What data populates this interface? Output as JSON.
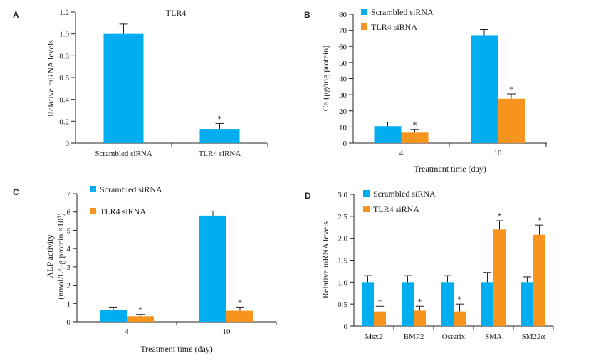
{
  "chart_data": [
    {
      "panel": "A",
      "type": "bar",
      "title": "TLR4",
      "xlabel": "",
      "ylabel": "Relative mRNA levels",
      "ylim": [
        0,
        1.2
      ],
      "yticks": [
        "0",
        "0.2",
        "0.4",
        "0.6",
        "0.8",
        "1.0",
        "1.2"
      ],
      "categories": [
        "Scrambled siRNA",
        "TLR4 siRNA"
      ],
      "series": [
        {
          "values": [
            1.0,
            0.13
          ],
          "errors": [
            0.09,
            0.05
          ],
          "color": "#00aeef",
          "significance": [
            "",
            "*"
          ]
        }
      ],
      "grid": false,
      "legend": "none"
    },
    {
      "panel": "B",
      "type": "bar",
      "title": "",
      "xlabel": "Treatment time (day)",
      "ylabel": "Ca (μg/mg protein)",
      "ylim": [
        0,
        80
      ],
      "yticks": [
        "0",
        "10",
        "20",
        "30",
        "40",
        "50",
        "60",
        "70",
        "80"
      ],
      "categories": [
        "4",
        "10"
      ],
      "series": [
        {
          "name": "Scrambled siRNA",
          "values": [
            10.5,
            67
          ],
          "errors": [
            2.5,
            3.5
          ],
          "color": "#00aeef",
          "significance": [
            "",
            ""
          ]
        },
        {
          "name": "TLR4 siRNA",
          "values": [
            6.5,
            27.5
          ],
          "errors": [
            2,
            3
          ],
          "color": "#f7941d",
          "significance": [
            "*",
            "*"
          ]
        }
      ],
      "grid": false,
      "legend": "top-left"
    },
    {
      "panel": "C",
      "type": "bar",
      "title": "",
      "xlabel": "Treatment time (day)",
      "ylabel": [
        "ALP activity",
        "(nmol/L/μg protein ×10³)"
      ],
      "ylim": [
        0,
        7
      ],
      "yticks": [
        "0",
        "1",
        "2",
        "3",
        "4",
        "5",
        "6",
        "7"
      ],
      "categories": [
        "4",
        "10"
      ],
      "series": [
        {
          "name": "Scrambled siRNA",
          "values": [
            0.65,
            5.8
          ],
          "errors": [
            0.15,
            0.25
          ],
          "color": "#00aeef",
          "significance": [
            "",
            ""
          ]
        },
        {
          "name": "TLR4 siRNA",
          "values": [
            0.3,
            0.6
          ],
          "errors": [
            0.1,
            0.2
          ],
          "color": "#f7941d",
          "significance": [
            "*",
            "*"
          ]
        }
      ],
      "grid": false,
      "legend": "top-left"
    },
    {
      "panel": "D",
      "type": "bar",
      "title": "",
      "xlabel": "",
      "ylabel": "Relative mRNA levels",
      "ylim": [
        0,
        3.0
      ],
      "yticks": [
        "0",
        "0.5",
        "1.0",
        "1.5",
        "2.0",
        "2.5",
        "3.0"
      ],
      "categories": [
        "Msx2",
        "BMP2",
        "Osterix",
        "SMA",
        "SM22α"
      ],
      "series": [
        {
          "name": "Scrambled siRNA",
          "values": [
            1.0,
            1.0,
            1.0,
            1.0,
            1.0
          ],
          "errors": [
            0.15,
            0.15,
            0.15,
            0.22,
            0.12
          ],
          "color": "#00aeef",
          "significance": [
            "",
            "",
            "",
            "",
            ""
          ]
        },
        {
          "name": "TLR4 siRNA",
          "values": [
            0.33,
            0.35,
            0.33,
            2.2,
            2.08
          ],
          "errors": [
            0.12,
            0.1,
            0.17,
            0.2,
            0.22
          ],
          "color": "#f7941d",
          "significance": [
            "*",
            "*",
            "*",
            "*",
            "*"
          ]
        }
      ],
      "grid": false,
      "legend": "top-left"
    }
  ]
}
